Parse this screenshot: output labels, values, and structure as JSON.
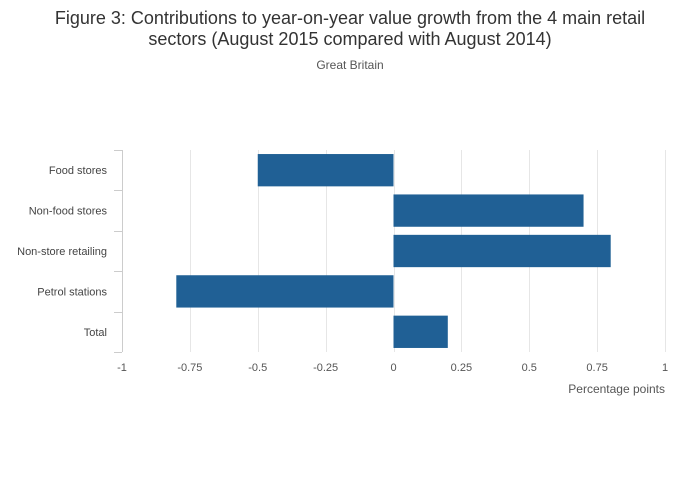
{
  "chart_data": {
    "type": "bar",
    "orientation": "horizontal",
    "title_line1": "Figure 3: Contributions to year-on-year value growth from the 4 main retail",
    "title_line2": "sectors (August 2015 compared with August 2014)",
    "subtitle": "Great Britain",
    "categories": [
      "Food stores",
      "Non-food stores",
      "Non-store retailing",
      "Petrol stations",
      "Total"
    ],
    "values": [
      -0.5,
      0.7,
      0.8,
      -0.8,
      0.2
    ],
    "xlabel": "Percentage points",
    "ylabel": "",
    "xlim": [
      -1,
      1
    ],
    "xticks": [
      -1,
      -0.75,
      -0.5,
      -0.25,
      0,
      0.25,
      0.5,
      0.75,
      1
    ],
    "xtick_labels": [
      "-1",
      "-0.75",
      "-0.5",
      "-0.25",
      "0",
      "0.25",
      "0.5",
      "0.75",
      "1"
    ],
    "grid": true,
    "bar_color": "#206095",
    "grid_color": "#e6e6e6",
    "axis_color": "#cccccc"
  }
}
